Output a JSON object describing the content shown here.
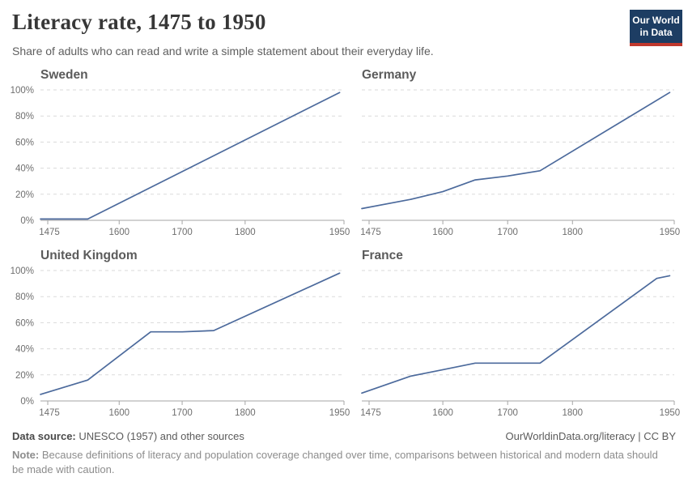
{
  "header": {
    "title": "Literacy rate, 1475 to 1950",
    "subtitle": "Share of adults who can read and write a simple statement about their everyday life."
  },
  "logo": {
    "line1": "Our World",
    "line2": "in Data",
    "bg_color": "#1d3d63",
    "accent_color": "#c0382d"
  },
  "theme": {
    "line_color": "#4c6a9c",
    "grid_color": "#dadada",
    "axis_color": "#a5a5a5",
    "tick_label_color": "#6e6e6e"
  },
  "chart_data": [
    {
      "type": "line",
      "title": "Sweden",
      "x": [
        1475,
        1550,
        1950
      ],
      "y": [
        1,
        1,
        98
      ],
      "xlim": [
        1475,
        1957
      ],
      "ylim": [
        0,
        100
      ],
      "x_ticks": [
        1475,
        1600,
        1700,
        1800,
        1950
      ],
      "y_ticks": [
        0,
        20,
        40,
        60,
        80,
        100
      ],
      "y_tick_labels": [
        "0%",
        "20%",
        "40%",
        "60%",
        "80%",
        "100%"
      ],
      "show_y_labels": true,
      "grid": true,
      "line_color": "#4c6a9c"
    },
    {
      "type": "line",
      "title": "Germany",
      "x": [
        1475,
        1550,
        1600,
        1650,
        1700,
        1750,
        1950
      ],
      "y": [
        9,
        16,
        22,
        31,
        34,
        38,
        98
      ],
      "xlim": [
        1475,
        1957
      ],
      "ylim": [
        0,
        100
      ],
      "x_ticks": [
        1475,
        1600,
        1700,
        1800,
        1950
      ],
      "y_ticks": [
        0,
        20,
        40,
        60,
        80,
        100
      ],
      "y_tick_labels": [
        "0%",
        "20%",
        "40%",
        "60%",
        "80%",
        "100%"
      ],
      "show_y_labels": false,
      "grid": true,
      "line_color": "#4c6a9c"
    },
    {
      "type": "line",
      "title": "United Kingdom",
      "x": [
        1475,
        1550,
        1650,
        1700,
        1750,
        1950
      ],
      "y": [
        5,
        16,
        53,
        53,
        54,
        98
      ],
      "xlim": [
        1475,
        1957
      ],
      "ylim": [
        0,
        100
      ],
      "x_ticks": [
        1475,
        1600,
        1700,
        1800,
        1950
      ],
      "y_ticks": [
        0,
        20,
        40,
        60,
        80,
        100
      ],
      "y_tick_labels": [
        "0%",
        "20%",
        "40%",
        "60%",
        "80%",
        "100%"
      ],
      "show_y_labels": true,
      "grid": true,
      "line_color": "#4c6a9c"
    },
    {
      "type": "line",
      "title": "France",
      "x": [
        1475,
        1550,
        1600,
        1650,
        1700,
        1750,
        1930,
        1950
      ],
      "y": [
        6,
        19,
        24,
        29,
        29,
        29,
        94,
        96
      ],
      "xlim": [
        1475,
        1957
      ],
      "ylim": [
        0,
        100
      ],
      "x_ticks": [
        1475,
        1600,
        1700,
        1800,
        1950
      ],
      "y_ticks": [
        0,
        20,
        40,
        60,
        80,
        100
      ],
      "y_tick_labels": [
        "0%",
        "20%",
        "40%",
        "60%",
        "80%",
        "100%"
      ],
      "show_y_labels": false,
      "grid": true,
      "line_color": "#4c6a9c"
    }
  ],
  "footer": {
    "source_label": "Data source:",
    "source_text": " UNESCO (1957) and other sources",
    "link_text": "OurWorldinData.org/literacy | CC BY",
    "note_label": "Note:",
    "note_text": " Because definitions of literacy and population coverage changed over time, comparisons between historical and modern data should be made with caution."
  }
}
